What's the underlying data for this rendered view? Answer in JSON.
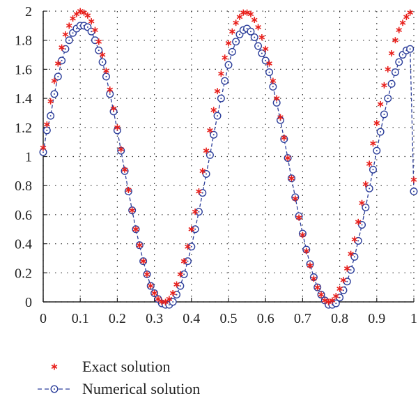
{
  "chart_data": {
    "type": "line",
    "title": "",
    "xlabel": "",
    "ylabel": "",
    "xlim": [
      0,
      1
    ],
    "ylim": [
      0,
      2
    ],
    "xticks": [
      "0",
      "0.1",
      "0.2",
      "0.3",
      "0.4",
      "0.5",
      "0.6",
      "0.7",
      "0.8",
      "0.9",
      "1"
    ],
    "yticks": [
      "0",
      "0.2",
      "0.4",
      "0.6",
      "0.8",
      "1",
      "1.2",
      "1.4",
      "1.6",
      "1.8",
      "2"
    ],
    "grid": "dotted",
    "legend_position": "bottom-left",
    "series": [
      {
        "name": "Exact solution",
        "marker": "asterisk",
        "color": "#e8201c",
        "x": [
          0.0,
          0.01,
          0.02,
          0.03,
          0.04,
          0.05,
          0.06,
          0.07,
          0.08,
          0.09,
          0.1,
          0.11,
          0.12,
          0.13,
          0.14,
          0.15,
          0.16,
          0.17,
          0.18,
          0.19,
          0.2,
          0.21,
          0.22,
          0.23,
          0.24,
          0.25,
          0.26,
          0.27,
          0.28,
          0.29,
          0.3,
          0.31,
          0.32,
          0.33,
          0.34,
          0.35,
          0.36,
          0.37,
          0.38,
          0.39,
          0.4,
          0.41,
          0.42,
          0.43,
          0.44,
          0.45,
          0.46,
          0.47,
          0.48,
          0.49,
          0.5,
          0.51,
          0.52,
          0.53,
          0.54,
          0.55,
          0.56,
          0.57,
          0.58,
          0.59,
          0.6,
          0.61,
          0.62,
          0.63,
          0.64,
          0.65,
          0.66,
          0.67,
          0.68,
          0.69,
          0.7,
          0.71,
          0.72,
          0.73,
          0.74,
          0.75,
          0.76,
          0.77,
          0.78,
          0.79,
          0.8,
          0.81,
          0.82,
          0.83,
          0.84,
          0.85,
          0.86,
          0.87,
          0.88,
          0.89,
          0.9,
          0.91,
          0.92,
          0.93,
          0.94,
          0.95,
          0.96,
          0.97,
          0.98,
          0.99,
          1.0
        ],
        "y": [
          1.06,
          1.22,
          1.38,
          1.52,
          1.64,
          1.75,
          1.84,
          1.9,
          1.95,
          1.98,
          2.0,
          1.99,
          1.97,
          1.93,
          1.87,
          1.79,
          1.7,
          1.59,
          1.46,
          1.33,
          1.2,
          1.05,
          0.91,
          0.77,
          0.63,
          0.5,
          0.39,
          0.28,
          0.19,
          0.11,
          0.06,
          0.02,
          0.0,
          0.0,
          0.02,
          0.06,
          0.12,
          0.19,
          0.28,
          0.38,
          0.5,
          0.62,
          0.76,
          0.9,
          1.04,
          1.18,
          1.32,
          1.45,
          1.57,
          1.68,
          1.78,
          1.86,
          1.92,
          1.96,
          1.99,
          1.99,
          1.98,
          1.94,
          1.89,
          1.82,
          1.74,
          1.64,
          1.52,
          1.4,
          1.27,
          1.13,
          0.99,
          0.85,
          0.71,
          0.58,
          0.46,
          0.35,
          0.25,
          0.16,
          0.1,
          0.05,
          0.01,
          0.0,
          0.01,
          0.04,
          0.09,
          0.15,
          0.23,
          0.33,
          0.43,
          0.55,
          0.68,
          0.81,
          0.95,
          1.09,
          1.23,
          1.36,
          1.49,
          1.6,
          1.71,
          1.8,
          1.87,
          1.92,
          1.96,
          1.99,
          0.84
        ]
      },
      {
        "name": "Numerical solution",
        "marker": "circle-dot",
        "color": "#2c3e9a",
        "x": [
          0.0,
          0.01,
          0.02,
          0.03,
          0.04,
          0.05,
          0.06,
          0.07,
          0.08,
          0.09,
          0.1,
          0.11,
          0.12,
          0.13,
          0.14,
          0.15,
          0.16,
          0.17,
          0.18,
          0.19,
          0.2,
          0.21,
          0.22,
          0.23,
          0.24,
          0.25,
          0.26,
          0.27,
          0.28,
          0.29,
          0.3,
          0.31,
          0.32,
          0.33,
          0.34,
          0.35,
          0.36,
          0.37,
          0.38,
          0.39,
          0.4,
          0.41,
          0.42,
          0.43,
          0.44,
          0.45,
          0.46,
          0.47,
          0.48,
          0.49,
          0.5,
          0.51,
          0.52,
          0.53,
          0.54,
          0.55,
          0.56,
          0.57,
          0.58,
          0.59,
          0.6,
          0.61,
          0.62,
          0.63,
          0.64,
          0.65,
          0.66,
          0.67,
          0.68,
          0.69,
          0.7,
          0.71,
          0.72,
          0.73,
          0.74,
          0.75,
          0.76,
          0.77,
          0.78,
          0.79,
          0.8,
          0.81,
          0.82,
          0.83,
          0.84,
          0.85,
          0.86,
          0.87,
          0.88,
          0.89,
          0.9,
          0.91,
          0.92,
          0.93,
          0.94,
          0.95,
          0.96,
          0.97,
          0.98,
          0.99,
          1.0
        ],
        "y": [
          1.03,
          1.18,
          1.28,
          1.43,
          1.55,
          1.66,
          1.74,
          1.8,
          1.85,
          1.88,
          1.9,
          1.9,
          1.89,
          1.86,
          1.8,
          1.73,
          1.65,
          1.55,
          1.43,
          1.31,
          1.18,
          1.04,
          0.9,
          0.76,
          0.63,
          0.5,
          0.39,
          0.28,
          0.19,
          0.11,
          0.06,
          0.02,
          -0.01,
          -0.02,
          -0.02,
          0.0,
          0.05,
          0.11,
          0.19,
          0.28,
          0.38,
          0.5,
          0.62,
          0.75,
          0.88,
          1.01,
          1.15,
          1.28,
          1.4,
          1.52,
          1.63,
          1.72,
          1.79,
          1.84,
          1.87,
          1.88,
          1.86,
          1.82,
          1.76,
          1.71,
          1.66,
          1.58,
          1.48,
          1.37,
          1.25,
          1.12,
          0.99,
          0.85,
          0.72,
          0.59,
          0.47,
          0.36,
          0.26,
          0.17,
          0.1,
          0.05,
          0.01,
          -0.02,
          -0.02,
          -0.01,
          0.03,
          0.08,
          0.14,
          0.22,
          0.31,
          0.42,
          0.53,
          0.65,
          0.78,
          0.91,
          1.04,
          1.17,
          1.29,
          1.4,
          1.5,
          1.58,
          1.65,
          1.7,
          1.73,
          1.74,
          0.76
        ]
      }
    ]
  }
}
